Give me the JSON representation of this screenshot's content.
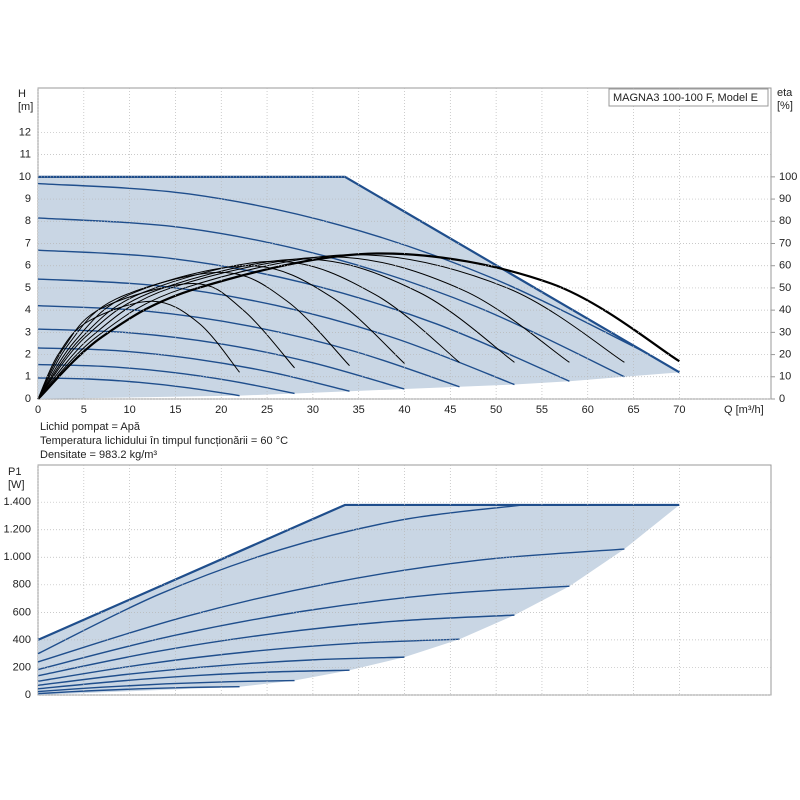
{
  "chart_data": [
    {
      "type": "line",
      "title": "MAGNA3 100-100 F, Model E",
      "ylabel": [
        "H",
        "[m]"
      ],
      "y2label": [
        "eta",
        "[%]"
      ],
      "xlabel": "Q [m³/h]",
      "annotations": [
        "Lichid pompat = Apă",
        "Temperatura lichidului în timpul funcționării = 60 °C",
        "Densitate = 983.2 kg/m³"
      ],
      "xlim": [
        0,
        80
      ],
      "xticks": [
        0,
        5,
        10,
        15,
        20,
        25,
        30,
        35,
        40,
        45,
        50,
        55,
        60,
        65,
        70
      ],
      "xtick_labels": true,
      "ylim": [
        0,
        14
      ],
      "yticks": [
        0,
        1,
        2,
        3,
        4,
        5,
        6,
        7,
        8,
        9,
        10,
        11,
        12
      ],
      "y2lim": [
        0,
        140
      ],
      "y2ticks": [
        0,
        10,
        20,
        30,
        40,
        50,
        60,
        70,
        80,
        90,
        100
      ],
      "grid": true,
      "series": [
        {
          "role": "envelope",
          "color": "#c9d6e4",
          "x": [
            0,
            33.5,
            70,
            64,
            58,
            52,
            46,
            40,
            34,
            28,
            22,
            0
          ],
          "values": [
            10,
            10,
            1.2,
            1.0,
            0.8,
            0.65,
            0.55,
            0.45,
            0.35,
            0.25,
            0.15,
            0
          ]
        },
        {
          "role": "speed",
          "color": "#1f4e8c",
          "x": [
            0,
            16.5,
            33,
            49.5,
            66
          ],
          "values": [
            9.7,
            9.23,
            7.82,
            5.46,
            2.16
          ]
        },
        {
          "role": "speed",
          "color": "#1f4e8c",
          "x": [
            0,
            16,
            32,
            48,
            64
          ],
          "values": [
            8.15,
            7.7,
            6.36,
            4.13,
            1.0
          ]
        },
        {
          "role": "speed",
          "color": "#1f4e8c",
          "x": [
            0,
            14.5,
            29,
            43.5,
            58
          ],
          "values": [
            6.7,
            6.33,
            5.23,
            3.38,
            0.8
          ]
        },
        {
          "role": "speed",
          "color": "#1f4e8c",
          "x": [
            0,
            13,
            26,
            39,
            52
          ],
          "values": [
            5.4,
            5.1,
            4.21,
            2.73,
            0.65
          ]
        },
        {
          "role": "speed",
          "color": "#1f4e8c",
          "x": [
            0,
            11.5,
            23,
            34.5,
            46
          ],
          "values": [
            4.2,
            3.97,
            3.29,
            2.15,
            0.55
          ]
        },
        {
          "role": "speed",
          "color": "#1f4e8c",
          "x": [
            0,
            10,
            20,
            30,
            40
          ],
          "values": [
            3.15,
            2.98,
            2.48,
            1.63,
            0.45
          ]
        },
        {
          "role": "speed",
          "color": "#1f4e8c",
          "x": [
            0,
            8.5,
            17,
            25.5,
            34
          ],
          "values": [
            2.3,
            2.18,
            1.81,
            1.2,
            0.35
          ]
        },
        {
          "role": "speed",
          "color": "#1f4e8c",
          "x": [
            0,
            7,
            14,
            21,
            28
          ],
          "values": [
            1.55,
            1.47,
            1.23,
            0.82,
            0.25
          ]
        },
        {
          "role": "speed",
          "color": "#1f4e8c",
          "x": [
            0,
            5.5,
            11,
            16.5,
            22
          ],
          "values": [
            0.95,
            0.9,
            0.75,
            0.5,
            0.15
          ]
        },
        {
          "role": "max",
          "color": "#1f4e8c",
          "x": [
            0,
            33.5,
            70
          ],
          "values": [
            10,
            10,
            1.2
          ]
        },
        {
          "role": "efficiency",
          "axis": "y2",
          "color": "#000000",
          "x": [
            0,
            2.2,
            5.5,
            12.5,
            17.6,
            22
          ],
          "values": [
            0,
            20,
            35,
            44,
            34,
            12
          ]
        },
        {
          "role": "efficiency",
          "axis": "y2",
          "color": "#000000",
          "x": [
            0,
            2.8,
            7,
            17,
            22.4,
            28
          ],
          "values": [
            0,
            23,
            41,
            52,
            40,
            14
          ]
        },
        {
          "role": "efficiency",
          "axis": "y2",
          "color": "#000000",
          "x": [
            0,
            3.4,
            8.5,
            20,
            27.2,
            34
          ],
          "values": [
            0,
            25,
            45,
            57,
            44,
            15
          ]
        },
        {
          "role": "efficiency",
          "axis": "y2",
          "color": "#000000",
          "x": [
            0,
            4,
            10,
            23,
            32,
            40
          ],
          "values": [
            0,
            26,
            47,
            60,
            46,
            16
          ]
        },
        {
          "role": "efficiency",
          "axis": "y2",
          "color": "#000000",
          "x": [
            0,
            4.6,
            11.5,
            26,
            36.8,
            46
          ],
          "values": [
            0,
            27,
            48,
            62,
            47,
            16.5
          ]
        },
        {
          "role": "efficiency",
          "axis": "y2",
          "color": "#000000",
          "x": [
            0,
            5.2,
            13,
            29,
            41.6,
            52
          ],
          "values": [
            0,
            28,
            49,
            63,
            48,
            16.5
          ]
        },
        {
          "role": "efficiency",
          "axis": "y2",
          "color": "#000000",
          "x": [
            0,
            5.8,
            14.5,
            32,
            46.4,
            58
          ],
          "values": [
            0,
            28,
            50,
            64,
            49,
            16.5
          ]
        },
        {
          "role": "efficiency",
          "axis": "y2",
          "color": "#000000",
          "x": [
            0,
            6.4,
            16,
            34.5,
            51.2,
            64
          ],
          "values": [
            0,
            28,
            50,
            65,
            50,
            16.5
          ]
        },
        {
          "role": "efficiency-max",
          "axis": "y2",
          "color": "#000000",
          "x": [
            0,
            7,
            17.5,
            37,
            56,
            70
          ],
          "values": [
            0,
            28,
            50,
            65.5,
            52,
            17
          ]
        }
      ]
    },
    {
      "type": "line",
      "ylabel": [
        "P1",
        "[W]"
      ],
      "xlim": [
        0,
        80
      ],
      "xticks": [
        0,
        5,
        10,
        15,
        20,
        25,
        30,
        35,
        40,
        45,
        50,
        55,
        60,
        65,
        70
      ],
      "xtick_labels": false,
      "ylim": [
        0,
        1670
      ],
      "yticks": [
        0,
        200,
        400,
        600,
        800,
        {
          "value": 1000,
          "label": "1.000"
        },
        {
          "value": 1200,
          "label": "1.200"
        },
        {
          "value": 1400,
          "label": "1.400"
        }
      ],
      "grid": true,
      "series": [
        {
          "role": "envelope",
          "color": "#c9d6e4",
          "x": [
            0,
            33.5,
            70,
            64,
            58,
            52,
            46,
            40,
            34,
            28,
            22,
            0
          ],
          "values": [
            400,
            1380,
            1380,
            1060,
            790,
            580,
            405,
            275,
            180,
            105,
            60,
            0
          ]
        },
        {
          "role": "speed",
          "color": "#1f4e8c",
          "x": [
            0,
            13.25,
            26.5,
            39.75,
            53
          ],
          "values": [
            300,
            732,
            1056,
            1272,
            1380
          ]
        },
        {
          "role": "speed",
          "color": "#1f4e8c",
          "x": [
            0,
            16,
            32,
            48,
            64
          ],
          "values": [
            240,
            568,
            814,
            978,
            1060
          ]
        },
        {
          "role": "speed",
          "color": "#1f4e8c",
          "x": [
            0,
            14.5,
            29,
            43.5,
            58
          ],
          "values": [
            185,
            427,
            609,
            730,
            790
          ]
        },
        {
          "role": "speed",
          "color": "#1f4e8c",
          "x": [
            0,
            13,
            26,
            39,
            52
          ],
          "values": [
            140,
            316,
            448,
            536,
            580
          ]
        },
        {
          "role": "speed",
          "color": "#1f4e8c",
          "x": [
            0,
            11.5,
            23,
            34.5,
            46
          ],
          "values": [
            100,
            222,
            314,
            375,
            405
          ]
        },
        {
          "role": "speed",
          "color": "#1f4e8c",
          "x": [
            0,
            10,
            20,
            30,
            40
          ],
          "values": [
            70,
            152,
            214,
            255,
            275
          ]
        },
        {
          "role": "speed",
          "color": "#1f4e8c",
          "x": [
            0,
            8.5,
            17,
            25.5,
            34
          ],
          "values": [
            45,
            99,
            140,
            167,
            180
          ]
        },
        {
          "role": "speed",
          "color": "#1f4e8c",
          "x": [
            0,
            7,
            14,
            21,
            28
          ],
          "values": [
            25,
            57,
            81,
            97,
            105
          ]
        },
        {
          "role": "speed",
          "color": "#1f4e8c",
          "x": [
            0,
            5.5,
            11,
            16.5,
            22
          ],
          "values": [
            10,
            30,
            45,
            55,
            60
          ]
        },
        {
          "role": "max",
          "color": "#1f4e8c",
          "x": [
            0,
            33.5,
            70
          ],
          "values": [
            400,
            1380,
            1380
          ]
        }
      ]
    }
  ]
}
